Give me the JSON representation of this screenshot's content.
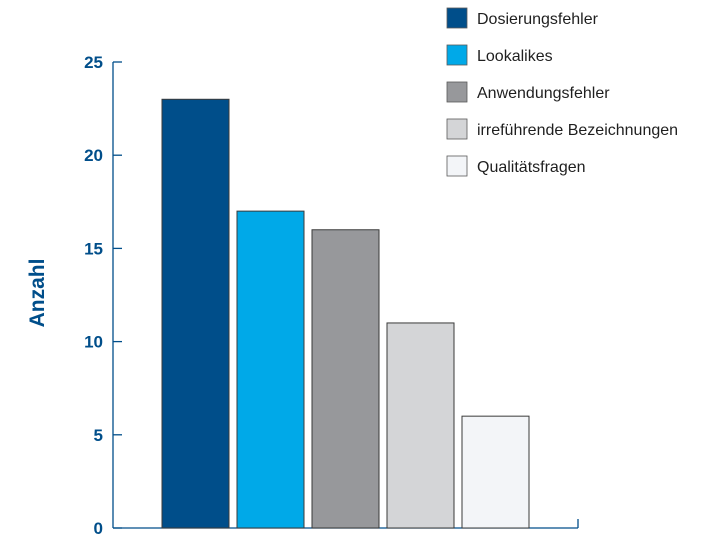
{
  "chart_data": {
    "type": "bar",
    "categories": [
      "Dosierungsfehler",
      "Lookalikes",
      "Anwendungsfehler",
      "irreführende Bezeichnungen",
      "Qualitätsfragen"
    ],
    "values": [
      23,
      17,
      16,
      11,
      6
    ],
    "colors": [
      "#004e8a",
      "#00a9e8",
      "#97989b",
      "#d4d5d7",
      "#f3f5f8"
    ],
    "title": "",
    "xlabel": "",
    "ylabel": "Anzahl",
    "ylim": [
      0,
      25
    ],
    "yticks": [
      "0",
      "5",
      "10",
      "15",
      "20",
      "25"
    ],
    "legend": [
      "Dosierungsfehler",
      "Lookalikes",
      "Anwendungsfehler",
      "irreführende Bezeichnungen",
      "Qualitätsfragen"
    ],
    "legend_position": "top-right",
    "grid": false,
    "axis_color": "#004e8a",
    "bar_edge_color": "#3a3a3a"
  }
}
